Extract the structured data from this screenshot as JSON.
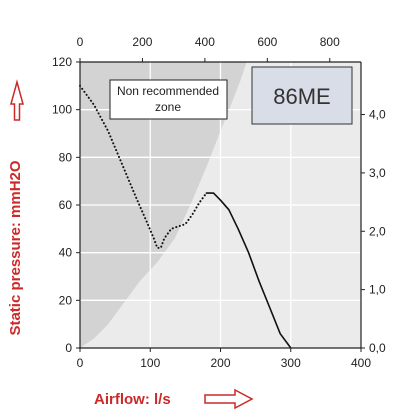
{
  "chart_data": {
    "type": "line",
    "title": "",
    "model_label": "86ME",
    "annotation": "Non recommended zone",
    "annotation_lines": [
      "Non recommended",
      "zone"
    ],
    "xlabel": "Airflow: l/s",
    "ylabel": "Static pressure: mmH2O",
    "xlim": [
      0,
      400
    ],
    "ylim": [
      0,
      120
    ],
    "x_ticks": [
      "0",
      "100",
      "200",
      "300",
      "400"
    ],
    "y_ticks": [
      "0",
      "20",
      "40",
      "60",
      "80",
      "100",
      "120"
    ],
    "top_axis": {
      "lim": [
        0,
        900
      ],
      "ticks": [
        "0",
        "200",
        "400",
        "600",
        "800"
      ]
    },
    "right_axis": {
      "lim": [
        0,
        4.9
      ],
      "ticks": [
        "0,0",
        "1,0",
        "2,0",
        "3,0",
        "4,0"
      ]
    },
    "grid": true,
    "non_recommended_zone": {
      "boundary": [
        [
          0,
          0
        ],
        [
          20,
          4
        ],
        [
          40,
          10
        ],
        [
          60,
          18
        ],
        [
          85,
          28
        ],
        [
          110,
          36
        ],
        [
          135,
          46
        ],
        [
          160,
          62
        ],
        [
          180,
          76
        ],
        [
          200,
          91
        ],
        [
          215,
          102
        ],
        [
          228,
          112
        ],
        [
          237,
          120
        ]
      ]
    },
    "series": [
      {
        "style": "dotted",
        "points": [
          [
            0,
            110
          ],
          [
            20,
            102
          ],
          [
            40,
            91
          ],
          [
            60,
            77
          ],
          [
            80,
            63
          ],
          [
            95,
            53
          ],
          [
            105,
            46
          ],
          [
            110,
            42
          ],
          [
            115,
            42
          ],
          [
            120,
            46
          ],
          [
            130,
            50
          ],
          [
            140,
            51
          ],
          [
            150,
            52
          ],
          [
            160,
            56
          ],
          [
            170,
            61
          ],
          [
            180,
            65
          ]
        ]
      },
      {
        "style": "solid",
        "points": [
          [
            180,
            65
          ],
          [
            190,
            65
          ],
          [
            200,
            62
          ],
          [
            212,
            58
          ],
          [
            225,
            50
          ],
          [
            240,
            40
          ],
          [
            255,
            28
          ],
          [
            270,
            17
          ],
          [
            285,
            6
          ],
          [
            300,
            0
          ]
        ]
      }
    ],
    "colors": {
      "zone_fill": "#d3d3d3",
      "plot_background": "#ebebeb",
      "model_box_fill": "#d9dde8",
      "label_red": "#cc2a2a",
      "arrow_fill": "#ffffff"
    }
  }
}
